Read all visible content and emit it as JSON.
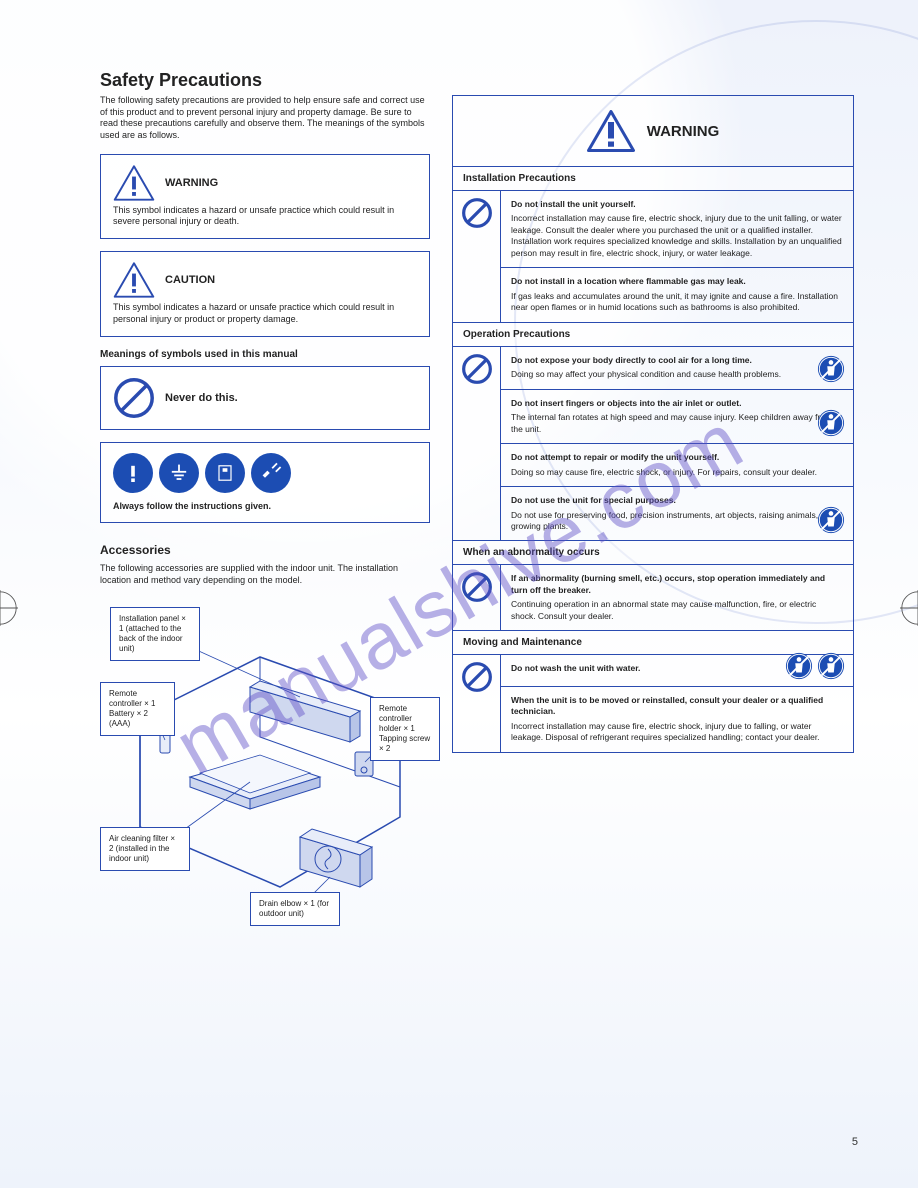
{
  "colors": {
    "accent": "#2a4bb0",
    "text": "#222222",
    "icon_blue": "#1c4db3",
    "bg_soft": "#eef2fb"
  },
  "watermark_text": "manualshive.com",
  "page_number": "5",
  "left": {
    "title": "Safety Precautions",
    "intro": "The following safety precautions are provided to help ensure safe and correct use of this product and to prevent personal injury and property damage. Be sure to read these precautions carefully and observe them. The meanings of the symbols used are as follows.",
    "warning": {
      "label": "WARNING",
      "desc": "This symbol indicates a hazard or unsafe practice which could result in severe personal injury or death."
    },
    "caution": {
      "label": "CAUTION",
      "desc": "This symbol indicates a hazard or unsafe practice which could result in personal injury or product or property damage."
    },
    "symbols_head": "Meanings of symbols used in this manual",
    "prohibit": {
      "label": "Never do this.",
      "desc": ""
    },
    "mandatory": {
      "label": "Always follow the instructions given.",
      "desc": ""
    }
  },
  "accessories": {
    "head": "Accessories",
    "sub": "The following accessories are supplied with the indoor unit. The installation location and method vary depending on the model.",
    "labels": {
      "panel": "Installation panel × 1 (attached to the back of the indoor unit)",
      "remote": "Remote controller × 1\nBattery × 2 (AAA)",
      "holder": "Remote controller holder × 1\nTapping screw × 2",
      "filter": "Air cleaning filter × 2 (installed in the indoor unit)",
      "outdoor": "Drain elbow × 1 (for outdoor unit)"
    }
  },
  "right": {
    "header": "WARNING",
    "sections": [
      {
        "cat": "Installation Precautions",
        "icon": "prohibit",
        "cells": [
          {
            "rule": "Do not install the unit yourself.",
            "body": "Incorrect installation may cause fire, electric shock, injury due to the unit falling, or water leakage. Consult the dealer where you purchased the unit or a qualified installer. Installation work requires specialized knowledge and skills. Installation by an unqualified person may result in fire, electric shock, injury, or water leakage."
          },
          {
            "rule": "Do not install in a location where flammable gas may leak.",
            "body": "If gas leaks and accumulates around the unit, it may ignite and cause a fire. Installation near open flames or in humid locations such as bathrooms is also prohibited."
          }
        ]
      },
      {
        "cat": "Operation Precautions",
        "icon": "prohibit",
        "cells": [
          {
            "rule": "Do not expose your body directly to cool air for a long time.",
            "body": "Doing so may affect your physical condition and cause health problems.",
            "icn": [
              "person"
            ]
          },
          {
            "rule": "Do not insert fingers or objects into the air inlet or outlet.",
            "body": "The internal fan rotates at high speed and may cause injury. Keep children away from the unit.",
            "icn": [
              "person"
            ]
          },
          {
            "rule": "Do not attempt to repair or modify the unit yourself.",
            "body": "Doing so may cause fire, electric shock, or injury. For repairs, consult your dealer."
          },
          {
            "rule": "Do not use the unit for special purposes.",
            "body": "Do not use for preserving food, precision instruments, art objects, raising animals, or growing plants.",
            "icn": [
              "person2"
            ]
          }
        ]
      },
      {
        "cat": "When an abnormality occurs",
        "icon": "prohibit",
        "cells": [
          {
            "rule": "If an abnormality (burning smell, etc.) occurs, stop operation immediately and turn off the breaker.",
            "body": "Continuing operation in an abnormal state may cause malfunction, fire, or electric shock. Consult your dealer."
          }
        ]
      },
      {
        "cat": "Moving and Maintenance",
        "icon": "prohibit",
        "cells": [
          {
            "rule": "Do not wash the unit with water.",
            "body": "",
            "icn": [
              "plug",
              "plug"
            ]
          },
          {
            "rule": "When the unit is to be moved or reinstalled, consult your dealer or a qualified technician.",
            "body": "Incorrect installation may cause fire, electric shock, injury due to falling, or water leakage. Disposal of refrigerant requires specialized handling; contact your dealer."
          }
        ]
      }
    ]
  }
}
